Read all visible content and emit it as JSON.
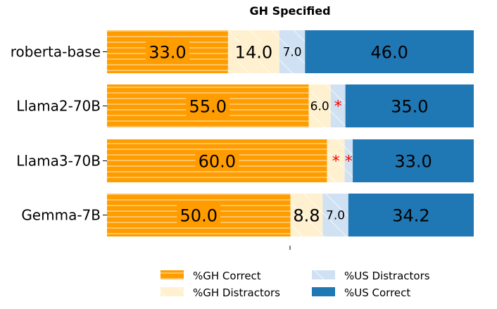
{
  "chart_data": {
    "type": "bar",
    "orientation": "horizontal",
    "stacked": true,
    "title": "GH Specified",
    "categories": [
      "roberta-base",
      "Llama2-70B",
      "Llama3-70B",
      "Gemma-7B"
    ],
    "series": [
      {
        "name": "%GH Correct",
        "color": "#ff9d00",
        "hatch": "horizontal",
        "values": [
          33.0,
          55.0,
          60.0,
          50.0
        ],
        "labels": [
          "33.0",
          "55.0",
          "60.0",
          "50.0"
        ]
      },
      {
        "name": "%GH Distractors",
        "color": "#fff1cf",
        "hatch": "diagonal",
        "values": [
          14.0,
          6.0,
          4.8,
          8.8
        ],
        "labels": [
          "14.0",
          "6.0",
          "*",
          "8.8"
        ]
      },
      {
        "name": "%US Distractors",
        "color": "#cfe1f3",
        "hatch": "diagonal",
        "values": [
          7.0,
          4.0,
          2.2,
          7.0
        ],
        "labels": [
          "7.0",
          "*",
          "*",
          "7.0"
        ]
      },
      {
        "name": "%US Correct",
        "color": "#1f77b4",
        "hatch": "none",
        "values": [
          46.0,
          35.0,
          33.0,
          34.2
        ],
        "labels": [
          "46.0",
          "35.0",
          "33.0",
          "34.2"
        ]
      }
    ],
    "xlim": [
      0,
      100
    ],
    "legend_position": "bottom",
    "marker_color": "#ff0000"
  }
}
